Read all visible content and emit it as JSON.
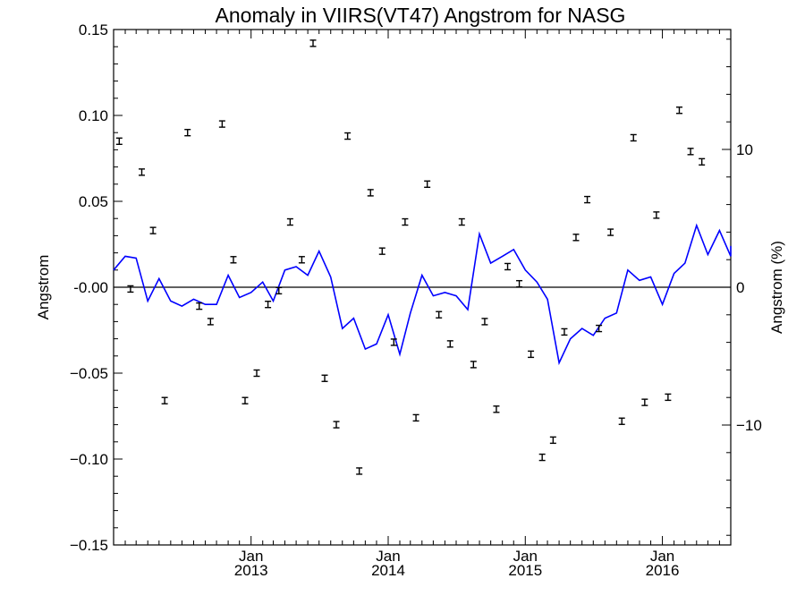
{
  "chart_data": {
    "type": "scatter",
    "title": "Anomaly in VIIRS(VT47) Angstrom for NASG",
    "ylabel": "Angstrom",
    "y2label": "Angstrom (%)",
    "xlabel": "",
    "ylim": [
      -0.15,
      0.15
    ],
    "y2lim": [
      -18.7,
      18.7
    ],
    "xlim": [
      "2012-01-01",
      "2016-07-01"
    ],
    "yticks": [
      {
        "value": 0.15,
        "label": "0.15"
      },
      {
        "value": 0.1,
        "label": "0.10"
      },
      {
        "value": 0.05,
        "label": "0.05"
      },
      {
        "value": 0.0,
        "label": "-0.00"
      },
      {
        "value": -0.05,
        "label": "−0.05"
      },
      {
        "value": -0.1,
        "label": "−0.10"
      },
      {
        "value": -0.15,
        "label": "−0.15"
      }
    ],
    "y2ticks": [
      {
        "value": 10,
        "label": "10"
      },
      {
        "value": 0,
        "label": "0"
      },
      {
        "value": -10,
        "label": "−10"
      }
    ],
    "xticks": [
      {
        "date": "2013-01-01",
        "month": "Jan",
        "year": "2013"
      },
      {
        "date": "2014-01-01",
        "month": "Jan",
        "year": "2014"
      },
      {
        "date": "2015-01-01",
        "month": "Jan",
        "year": "2015"
      },
      {
        "date": "2016-01-01",
        "month": "Jan",
        "year": "2016"
      }
    ],
    "zero_line": true,
    "grid": false,
    "series": [
      {
        "kind": "errorbar",
        "color": "#000000",
        "unit": "Angstrom",
        "points": [
          {
            "x": "2012-01-16",
            "y": 0.085
          },
          {
            "x": "2012-02-15",
            "y": -0.001
          },
          {
            "x": "2012-03-16",
            "y": 0.067
          },
          {
            "x": "2012-04-15",
            "y": 0.033
          },
          {
            "x": "2012-05-16",
            "y": -0.066
          },
          {
            "x": "2012-07-16",
            "y": 0.09
          },
          {
            "x": "2012-08-16",
            "y": -0.011
          },
          {
            "x": "2012-09-15",
            "y": -0.02
          },
          {
            "x": "2012-10-16",
            "y": 0.095
          },
          {
            "x": "2012-11-15",
            "y": 0.016
          },
          {
            "x": "2012-12-16",
            "y": -0.066
          },
          {
            "x": "2013-01-16",
            "y": -0.05
          },
          {
            "x": "2013-02-15",
            "y": -0.01
          },
          {
            "x": "2013-03-16",
            "y": -0.002
          },
          {
            "x": "2013-04-15",
            "y": 0.038
          },
          {
            "x": "2013-05-16",
            "y": 0.016
          },
          {
            "x": "2013-06-15",
            "y": 0.142
          },
          {
            "x": "2013-07-16",
            "y": -0.053
          },
          {
            "x": "2013-08-16",
            "y": -0.08
          },
          {
            "x": "2013-09-15",
            "y": 0.088
          },
          {
            "x": "2013-10-16",
            "y": -0.107
          },
          {
            "x": "2013-11-15",
            "y": 0.055
          },
          {
            "x": "2013-12-16",
            "y": 0.021
          },
          {
            "x": "2014-01-16",
            "y": -0.032
          },
          {
            "x": "2014-02-15",
            "y": 0.038
          },
          {
            "x": "2014-03-16",
            "y": -0.076
          },
          {
            "x": "2014-04-15",
            "y": 0.06
          },
          {
            "x": "2014-05-16",
            "y": -0.016
          },
          {
            "x": "2014-06-15",
            "y": -0.033
          },
          {
            "x": "2014-07-16",
            "y": 0.038
          },
          {
            "x": "2014-08-16",
            "y": -0.045
          },
          {
            "x": "2014-09-15",
            "y": -0.02
          },
          {
            "x": "2014-10-16",
            "y": -0.071
          },
          {
            "x": "2014-11-15",
            "y": 0.012
          },
          {
            "x": "2014-12-16",
            "y": 0.002
          },
          {
            "x": "2015-01-16",
            "y": -0.039
          },
          {
            "x": "2015-02-15",
            "y": -0.099
          },
          {
            "x": "2015-03-16",
            "y": -0.089
          },
          {
            "x": "2015-04-15",
            "y": -0.026
          },
          {
            "x": "2015-05-16",
            "y": 0.029
          },
          {
            "x": "2015-06-15",
            "y": 0.051
          },
          {
            "x": "2015-07-16",
            "y": -0.024
          },
          {
            "x": "2015-08-16",
            "y": 0.032
          },
          {
            "x": "2015-09-15",
            "y": -0.078
          },
          {
            "x": "2015-10-16",
            "y": 0.087
          },
          {
            "x": "2015-11-15",
            "y": -0.067
          },
          {
            "x": "2015-12-16",
            "y": 0.042
          },
          {
            "x": "2016-01-16",
            "y": -0.064
          },
          {
            "x": "2016-02-15",
            "y": 0.103
          },
          {
            "x": "2016-03-16",
            "y": 0.079
          },
          {
            "x": "2016-04-15",
            "y": 0.073
          }
        ]
      },
      {
        "kind": "line",
        "color": "#0000ff",
        "unit": "Angstrom",
        "points": [
          {
            "x": "2012-01-01",
            "y": 0.01
          },
          {
            "x": "2012-02-01",
            "y": 0.018
          },
          {
            "x": "2012-03-01",
            "y": 0.017
          },
          {
            "x": "2012-04-01",
            "y": -0.008
          },
          {
            "x": "2012-05-01",
            "y": 0.005
          },
          {
            "x": "2012-06-01",
            "y": -0.008
          },
          {
            "x": "2012-07-01",
            "y": -0.011
          },
          {
            "x": "2012-08-01",
            "y": -0.007
          },
          {
            "x": "2012-09-01",
            "y": -0.01
          },
          {
            "x": "2012-10-01",
            "y": -0.01
          },
          {
            "x": "2012-11-01",
            "y": 0.007
          },
          {
            "x": "2012-12-01",
            "y": -0.006
          },
          {
            "x": "2013-01-01",
            "y": -0.003
          },
          {
            "x": "2013-02-01",
            "y": 0.003
          },
          {
            "x": "2013-03-01",
            "y": -0.008
          },
          {
            "x": "2013-04-01",
            "y": 0.01
          },
          {
            "x": "2013-05-01",
            "y": 0.012
          },
          {
            "x": "2013-06-01",
            "y": 0.007
          },
          {
            "x": "2013-07-01",
            "y": 0.021
          },
          {
            "x": "2013-08-01",
            "y": 0.006
          },
          {
            "x": "2013-09-01",
            "y": -0.024
          },
          {
            "x": "2013-10-01",
            "y": -0.018
          },
          {
            "x": "2013-11-01",
            "y": -0.036
          },
          {
            "x": "2013-12-01",
            "y": -0.033
          },
          {
            "x": "2014-01-01",
            "y": -0.016
          },
          {
            "x": "2014-02-01",
            "y": -0.039
          },
          {
            "x": "2014-03-01",
            "y": -0.015
          },
          {
            "x": "2014-04-01",
            "y": 0.007
          },
          {
            "x": "2014-05-01",
            "y": -0.005
          },
          {
            "x": "2014-06-01",
            "y": -0.003
          },
          {
            "x": "2014-07-01",
            "y": -0.005
          },
          {
            "x": "2014-08-01",
            "y": -0.013
          },
          {
            "x": "2014-09-01",
            "y": 0.031
          },
          {
            "x": "2014-10-01",
            "y": 0.014
          },
          {
            "x": "2014-11-01",
            "y": 0.018
          },
          {
            "x": "2014-12-01",
            "y": 0.022
          },
          {
            "x": "2015-01-01",
            "y": 0.01
          },
          {
            "x": "2015-02-01",
            "y": 0.003
          },
          {
            "x": "2015-03-01",
            "y": -0.007
          },
          {
            "x": "2015-04-01",
            "y": -0.044
          },
          {
            "x": "2015-05-01",
            "y": -0.03
          },
          {
            "x": "2015-06-01",
            "y": -0.024
          },
          {
            "x": "2015-07-01",
            "y": -0.028
          },
          {
            "x": "2015-08-01",
            "y": -0.018
          },
          {
            "x": "2015-09-01",
            "y": -0.015
          },
          {
            "x": "2015-10-01",
            "y": 0.01
          },
          {
            "x": "2015-11-01",
            "y": 0.004
          },
          {
            "x": "2015-12-01",
            "y": 0.006
          },
          {
            "x": "2016-01-01",
            "y": -0.01
          },
          {
            "x": "2016-02-01",
            "y": 0.008
          },
          {
            "x": "2016-03-01",
            "y": 0.014
          },
          {
            "x": "2016-04-01",
            "y": 0.036
          },
          {
            "x": "2016-05-01",
            "y": 0.019
          },
          {
            "x": "2016-06-01",
            "y": 0.033
          },
          {
            "x": "2016-07-01",
            "y": 0.018
          },
          {
            "x": "2016-07-31",
            "y": 0.024
          }
        ]
      }
    ]
  }
}
